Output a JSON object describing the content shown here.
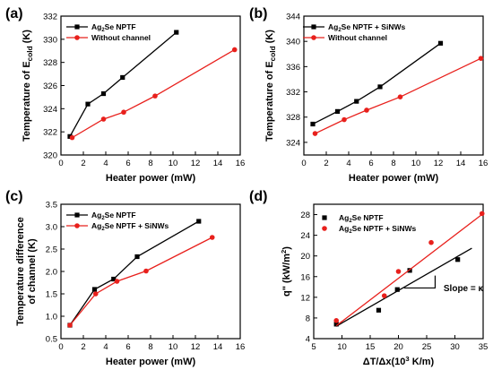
{
  "colors": {
    "black": "#000000",
    "red": "#e8201c"
  },
  "chart_data": [
    {
      "panel": "(a)",
      "type": "line",
      "xlabel": "Heater power (mW)",
      "ylabel": "Temperature of E",
      "ylabel_sub": "cold",
      "ylabel_tail": " (K)",
      "xlim": [
        0,
        16
      ],
      "ylim": [
        320,
        332
      ],
      "xticks": [
        0,
        2,
        4,
        6,
        8,
        10,
        12,
        14,
        16
      ],
      "yticks": [
        320,
        322,
        324,
        326,
        328,
        330,
        332
      ],
      "series": [
        {
          "name_parts": [
            "Ag",
            "2",
            "Se NPTF"
          ],
          "marker": "square",
          "color": "#000000",
          "x": [
            0.8,
            2.4,
            3.8,
            5.5,
            10.3
          ],
          "y": [
            321.6,
            324.4,
            325.3,
            326.7,
            330.6
          ]
        },
        {
          "name_parts": [
            "Without channel"
          ],
          "marker": "circle",
          "color": "#e8201c",
          "x": [
            1.0,
            3.8,
            5.6,
            8.4,
            15.5
          ],
          "y": [
            321.5,
            323.1,
            323.7,
            325.1,
            329.1
          ]
        }
      ]
    },
    {
      "panel": "(b)",
      "type": "line",
      "xlabel": "Heater power (mW)",
      "ylabel": "Temperature of E",
      "ylabel_sub": "cold",
      "ylabel_tail": " (K)",
      "xlim": [
        0,
        16
      ],
      "ylim": [
        322,
        344
      ],
      "xticks": [
        0,
        2,
        4,
        6,
        8,
        10,
        12,
        14,
        16
      ],
      "yticks": [
        324,
        328,
        332,
        336,
        340,
        344
      ],
      "series": [
        {
          "name_parts": [
            "Ag",
            "2",
            "Se NPTF + SiNWs"
          ],
          "marker": "square",
          "color": "#000000",
          "x": [
            0.8,
            3.0,
            4.7,
            6.8,
            12.2
          ],
          "y": [
            326.9,
            328.9,
            330.5,
            332.8,
            339.7
          ]
        },
        {
          "name_parts": [
            "Without channel"
          ],
          "marker": "circle",
          "color": "#e8201c",
          "x": [
            1.0,
            3.6,
            5.6,
            8.6,
            15.8
          ],
          "y": [
            325.4,
            327.6,
            329.1,
            331.2,
            337.3
          ]
        }
      ]
    },
    {
      "panel": "(c)",
      "type": "line",
      "xlabel": "Heater power (mW)",
      "ylabel": "Temperature difference",
      "ylabel2": "of channel (K)",
      "xlim": [
        0,
        16
      ],
      "ylim": [
        0.5,
        3.5
      ],
      "xticks": [
        0,
        2,
        4,
        6,
        8,
        10,
        12,
        14,
        16
      ],
      "yticks": [
        0.5,
        1.0,
        1.5,
        2.0,
        2.5,
        3.0,
        3.5
      ],
      "series": [
        {
          "name_parts": [
            "Ag",
            "2",
            "Se NPTF"
          ],
          "marker": "square",
          "color": "#000000",
          "x": [
            0.8,
            3.0,
            4.7,
            6.8,
            12.3
          ],
          "y": [
            0.8,
            1.6,
            1.83,
            2.33,
            3.12
          ]
        },
        {
          "name_parts": [
            "Ag",
            "2",
            "Se NPTF + SiNWs"
          ],
          "marker": "circle",
          "color": "#e8201c",
          "x": [
            0.8,
            3.1,
            5.0,
            7.6,
            13.5
          ],
          "y": [
            0.8,
            1.5,
            1.78,
            2.01,
            2.76
          ]
        }
      ]
    },
    {
      "panel": "(d)",
      "type": "scatter",
      "xlabel_parts": [
        "ΔT/Δx(10",
        "3",
        " K/m)"
      ],
      "ylabel_parts": [
        "q\" (kW/m",
        "2",
        ")"
      ],
      "annotation": "Slope = κ",
      "xlim": [
        5,
        35
      ],
      "ylim": [
        4,
        30
      ],
      "xticks": [
        5,
        10,
        15,
        20,
        25,
        30,
        35
      ],
      "yticks": [
        4,
        8,
        12,
        16,
        20,
        24,
        28
      ],
      "series": [
        {
          "name_parts": [
            "Ag",
            "2",
            "Se NPTF"
          ],
          "marker": "square",
          "color": "#000000",
          "x": [
            9.0,
            16.5,
            19.8,
            22.0,
            30.5
          ],
          "y": [
            6.8,
            9.5,
            13.5,
            17.2,
            19.3
          ],
          "fit": [
            [
              9.0,
              6.4
            ],
            [
              33.0,
              21.5
            ]
          ]
        },
        {
          "name_parts": [
            "Ag",
            "2",
            "Se NPTF + SiNWs"
          ],
          "marker": "circle",
          "color": "#e8201c",
          "x": [
            9.0,
            17.5,
            20.0,
            25.8,
            34.8
          ],
          "y": [
            7.5,
            12.3,
            17.0,
            22.6,
            28.2
          ],
          "fit": [
            [
              9.0,
              6.5
            ],
            [
              35.0,
              28.2
            ]
          ]
        }
      ]
    }
  ]
}
